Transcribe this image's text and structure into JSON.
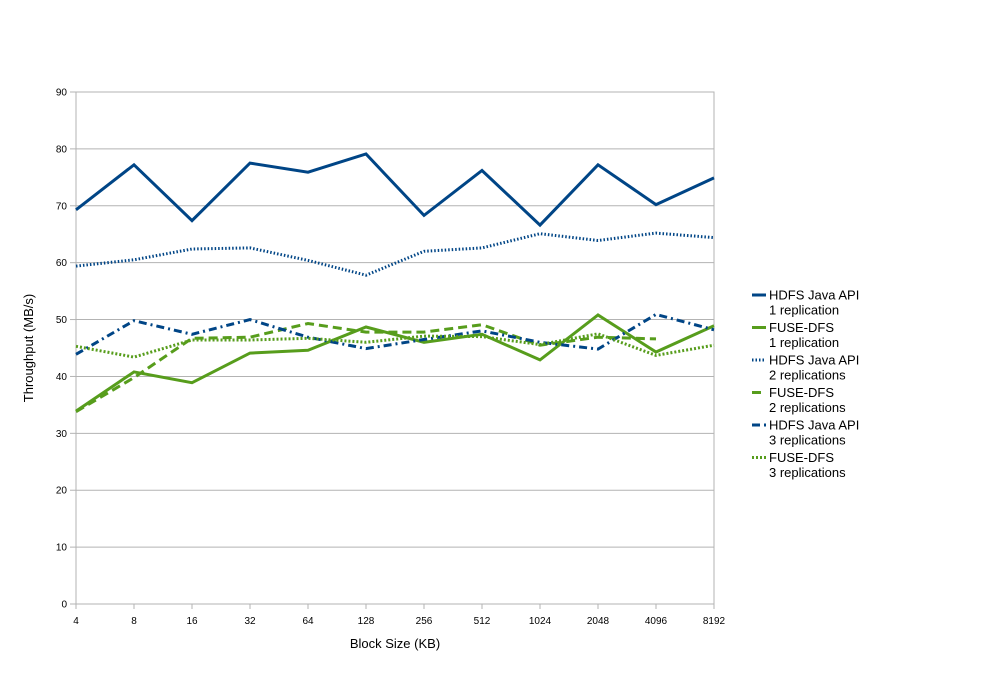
{
  "chart_data": {
    "type": "line",
    "xlabel": "Block Size (KB)",
    "ylabel": "Throughput (MB/s)",
    "ylim": [
      0,
      90
    ],
    "yticks": [
      0,
      10,
      20,
      30,
      40,
      50,
      60,
      70,
      80,
      90
    ],
    "categories": [
      "4",
      "8",
      "16",
      "32",
      "64",
      "128",
      "256",
      "512",
      "1024",
      "2048",
      "4096",
      "8192"
    ],
    "grid": "horizontal",
    "legend_position": "right",
    "series": [
      {
        "name_line1": "HDFS Java API",
        "name_line2": "1 replication",
        "color": "#004586",
        "style": "solid",
        "values": [
          69.3,
          77.2,
          67.4,
          77.5,
          75.9,
          79.1,
          68.3,
          76.2,
          66.6,
          77.2,
          70.2,
          74.9
        ]
      },
      {
        "name_line1": "FUSE-DFS",
        "name_line2": "1 replication",
        "color": "#579d1c",
        "style": "solid",
        "values": [
          33.9,
          40.8,
          38.9,
          44.1,
          44.6,
          48.7,
          46.0,
          47.4,
          42.9,
          50.8,
          44.3,
          48.9
        ]
      },
      {
        "name_line1": "HDFS Java API",
        "name_line2": "2 replications",
        "color": "#004586",
        "style": "dotted",
        "values": [
          59.4,
          60.5,
          62.4,
          62.6,
          60.4,
          57.8,
          62.0,
          62.6,
          65.1,
          63.9,
          65.2,
          64.4
        ]
      },
      {
        "name_line1": "FUSE-DFS",
        "name_line2": "2 replications",
        "color": "#579d1c",
        "style": "dash",
        "values": [
          33.8,
          39.8,
          46.7,
          46.9,
          49.3,
          47.8,
          47.8,
          49.1,
          45.5,
          46.9,
          46.6,
          null
        ]
      },
      {
        "name_line1": "HDFS Java API",
        "name_line2": "3 replications",
        "color": "#004586",
        "style": "dashdot",
        "values": [
          43.9,
          49.8,
          47.4,
          50.0,
          46.9,
          44.9,
          46.5,
          48.0,
          46.0,
          44.8,
          50.9,
          48.2
        ]
      },
      {
        "name_line1": "FUSE-DFS",
        "name_line2": "3 replications",
        "color": "#579d1c",
        "style": "densedot",
        "values": [
          45.3,
          43.4,
          46.4,
          46.4,
          46.7,
          46.0,
          47.1,
          47.0,
          45.6,
          47.5,
          43.7,
          45.5
        ]
      }
    ]
  }
}
